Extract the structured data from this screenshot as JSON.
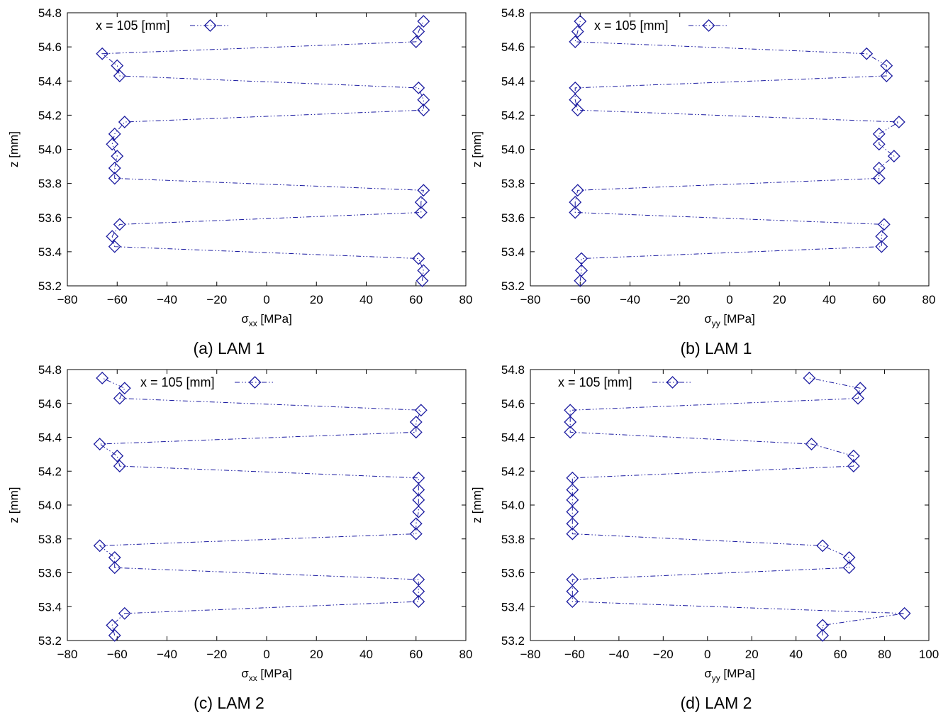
{
  "chart_data": [
    {
      "type": "line",
      "caption": "(a) LAM 1",
      "xlabel_symbol": "σ",
      "xlabel_sub": "xx",
      "xlabel_unit": "[MPa]",
      "ylabel": "z [mm]",
      "xlim": [
        -80,
        80
      ],
      "ylim": [
        53.2,
        54.8
      ],
      "xticks": [
        -80,
        -60,
        -40,
        -20,
        0,
        20,
        40,
        60,
        80
      ],
      "yticks": [
        "53.2",
        "53.4",
        "53.6",
        "53.8",
        "54.0",
        "54.2",
        "54.4",
        "54.6",
        "54.8"
      ],
      "grid": false,
      "legend_position": "top-left",
      "series": [
        {
          "name": "x = 105 [mm]",
          "color": "#1a1aa0",
          "marker": "diamond",
          "line_style": "dash-dot-dot",
          "points": [
            [
              62.5,
              53.23
            ],
            [
              63,
              53.29
            ],
            [
              61,
              53.36
            ],
            [
              -61,
              53.43
            ],
            [
              -62,
              53.49
            ],
            [
              -59,
              53.56
            ],
            [
              62,
              53.63
            ],
            [
              62,
              53.69
            ],
            [
              63,
              53.76
            ],
            [
              -61,
              53.83
            ],
            [
              -61,
              53.89
            ],
            [
              -60,
              53.96
            ],
            [
              -62,
              54.03
            ],
            [
              -61,
              54.09
            ],
            [
              -57,
              54.16
            ],
            [
              63,
              54.23
            ],
            [
              63,
              54.29
            ],
            [
              61,
              54.36
            ],
            [
              -59,
              54.43
            ],
            [
              -60,
              54.49
            ],
            [
              -66,
              54.56
            ],
            [
              60,
              54.63
            ],
            [
              61,
              54.69
            ],
            [
              63,
              54.75
            ]
          ]
        }
      ]
    },
    {
      "type": "line",
      "caption": "(b) LAM 1",
      "xlabel_symbol": "σ",
      "xlabel_sub": "yy",
      "xlabel_unit": "[MPa]",
      "ylabel": "z [mm]",
      "xlim": [
        -80,
        80
      ],
      "ylim": [
        53.2,
        54.8
      ],
      "xticks": [
        -80,
        -60,
        -40,
        -20,
        0,
        20,
        40,
        60,
        80
      ],
      "yticks": [
        "53.2",
        "53.4",
        "53.6",
        "53.8",
        "54.0",
        "54.2",
        "54.4",
        "54.6",
        "54.8"
      ],
      "grid": false,
      "legend_position": "top-left",
      "series": [
        {
          "name": "x = 105 [mm]",
          "color": "#1a1aa0",
          "marker": "diamond",
          "line_style": "dash-dot-dot",
          "points": [
            [
              -60,
              53.23
            ],
            [
              -59.5,
              53.29
            ],
            [
              -59.5,
              53.36
            ],
            [
              61,
              53.43
            ],
            [
              61,
              53.49
            ],
            [
              62,
              53.56
            ],
            [
              -62,
              53.63
            ],
            [
              -62,
              53.69
            ],
            [
              -61,
              53.76
            ],
            [
              60,
              53.83
            ],
            [
              60,
              53.89
            ],
            [
              66,
              53.96
            ],
            [
              60,
              54.03
            ],
            [
              60,
              54.09
            ],
            [
              68,
              54.16
            ],
            [
              -61,
              54.23
            ],
            [
              -62,
              54.29
            ],
            [
              -62,
              54.36
            ],
            [
              63,
              54.43
            ],
            [
              63,
              54.49
            ],
            [
              55,
              54.56
            ],
            [
              -62,
              54.63
            ],
            [
              -61,
              54.69
            ],
            [
              -60,
              54.75
            ]
          ]
        }
      ]
    },
    {
      "type": "line",
      "caption": "(c) LAM 2",
      "xlabel_symbol": "σ",
      "xlabel_sub": "xx",
      "xlabel_unit": "[MPa]",
      "ylabel": "z [mm]",
      "xlim": [
        -80,
        80
      ],
      "ylim": [
        53.2,
        54.8
      ],
      "xticks": [
        -80,
        -60,
        -40,
        -20,
        0,
        20,
        40,
        60,
        80
      ],
      "yticks": [
        "53.2",
        "53.4",
        "53.6",
        "53.8",
        "54.0",
        "54.2",
        "54.4",
        "54.6",
        "54.8"
      ],
      "grid": false,
      "legend_position": "top-right",
      "series": [
        {
          "name": "x = 105 [mm]",
          "color": "#1a1aa0",
          "marker": "diamond",
          "line_style": "dash-dot-dot",
          "points": [
            [
              -61,
              53.23
            ],
            [
              -62,
              53.29
            ],
            [
              -57,
              53.36
            ],
            [
              61,
              53.43
            ],
            [
              61,
              53.49
            ],
            [
              61,
              53.56
            ],
            [
              -61,
              53.63
            ],
            [
              -61,
              53.69
            ],
            [
              -67,
              53.76
            ],
            [
              60,
              53.83
            ],
            [
              60,
              53.89
            ],
            [
              61,
              53.96
            ],
            [
              61,
              54.03
            ],
            [
              61,
              54.09
            ],
            [
              61,
              54.16
            ],
            [
              -59,
              54.23
            ],
            [
              -60,
              54.29
            ],
            [
              -67,
              54.36
            ],
            [
              60,
              54.43
            ],
            [
              60,
              54.49
            ],
            [
              62,
              54.56
            ],
            [
              -59,
              54.63
            ],
            [
              -57,
              54.69
            ],
            [
              -66,
              54.75
            ]
          ]
        }
      ]
    },
    {
      "type": "line",
      "caption": "(d) LAM 2",
      "xlabel_symbol": "σ",
      "xlabel_sub": "yy",
      "xlabel_unit": "[MPa]",
      "ylabel": "z [mm]",
      "xlim": [
        -80,
        100
      ],
      "ylim": [
        53.2,
        54.8
      ],
      "xticks": [
        -80,
        -60,
        -40,
        -20,
        0,
        20,
        40,
        60,
        80,
        100
      ],
      "yticks": [
        "53.2",
        "53.4",
        "53.6",
        "53.8",
        "54.0",
        "54.2",
        "54.4",
        "54.6",
        "54.8"
      ],
      "grid": false,
      "legend_position": "top-left",
      "series": [
        {
          "name": "x = 105 [mm]",
          "color": "#1a1aa0",
          "marker": "diamond",
          "line_style": "dash-dot-dot",
          "points": [
            [
              52,
              53.23
            ],
            [
              52,
              53.29
            ],
            [
              89,
              53.36
            ],
            [
              -61,
              53.43
            ],
            [
              -61,
              53.49
            ],
            [
              -61,
              53.56
            ],
            [
              64,
              53.63
            ],
            [
              64,
              53.69
            ],
            [
              52,
              53.76
            ],
            [
              -61,
              53.83
            ],
            [
              -61,
              53.89
            ],
            [
              -61,
              53.96
            ],
            [
              -61,
              54.03
            ],
            [
              -61,
              54.09
            ],
            [
              -61,
              54.16
            ],
            [
              66,
              54.23
            ],
            [
              66,
              54.29
            ],
            [
              47,
              54.36
            ],
            [
              -62,
              54.43
            ],
            [
              -62,
              54.49
            ],
            [
              -62,
              54.56
            ],
            [
              68,
              54.63
            ],
            [
              69,
              54.69
            ],
            [
              46,
              54.75
            ]
          ]
        }
      ]
    }
  ]
}
